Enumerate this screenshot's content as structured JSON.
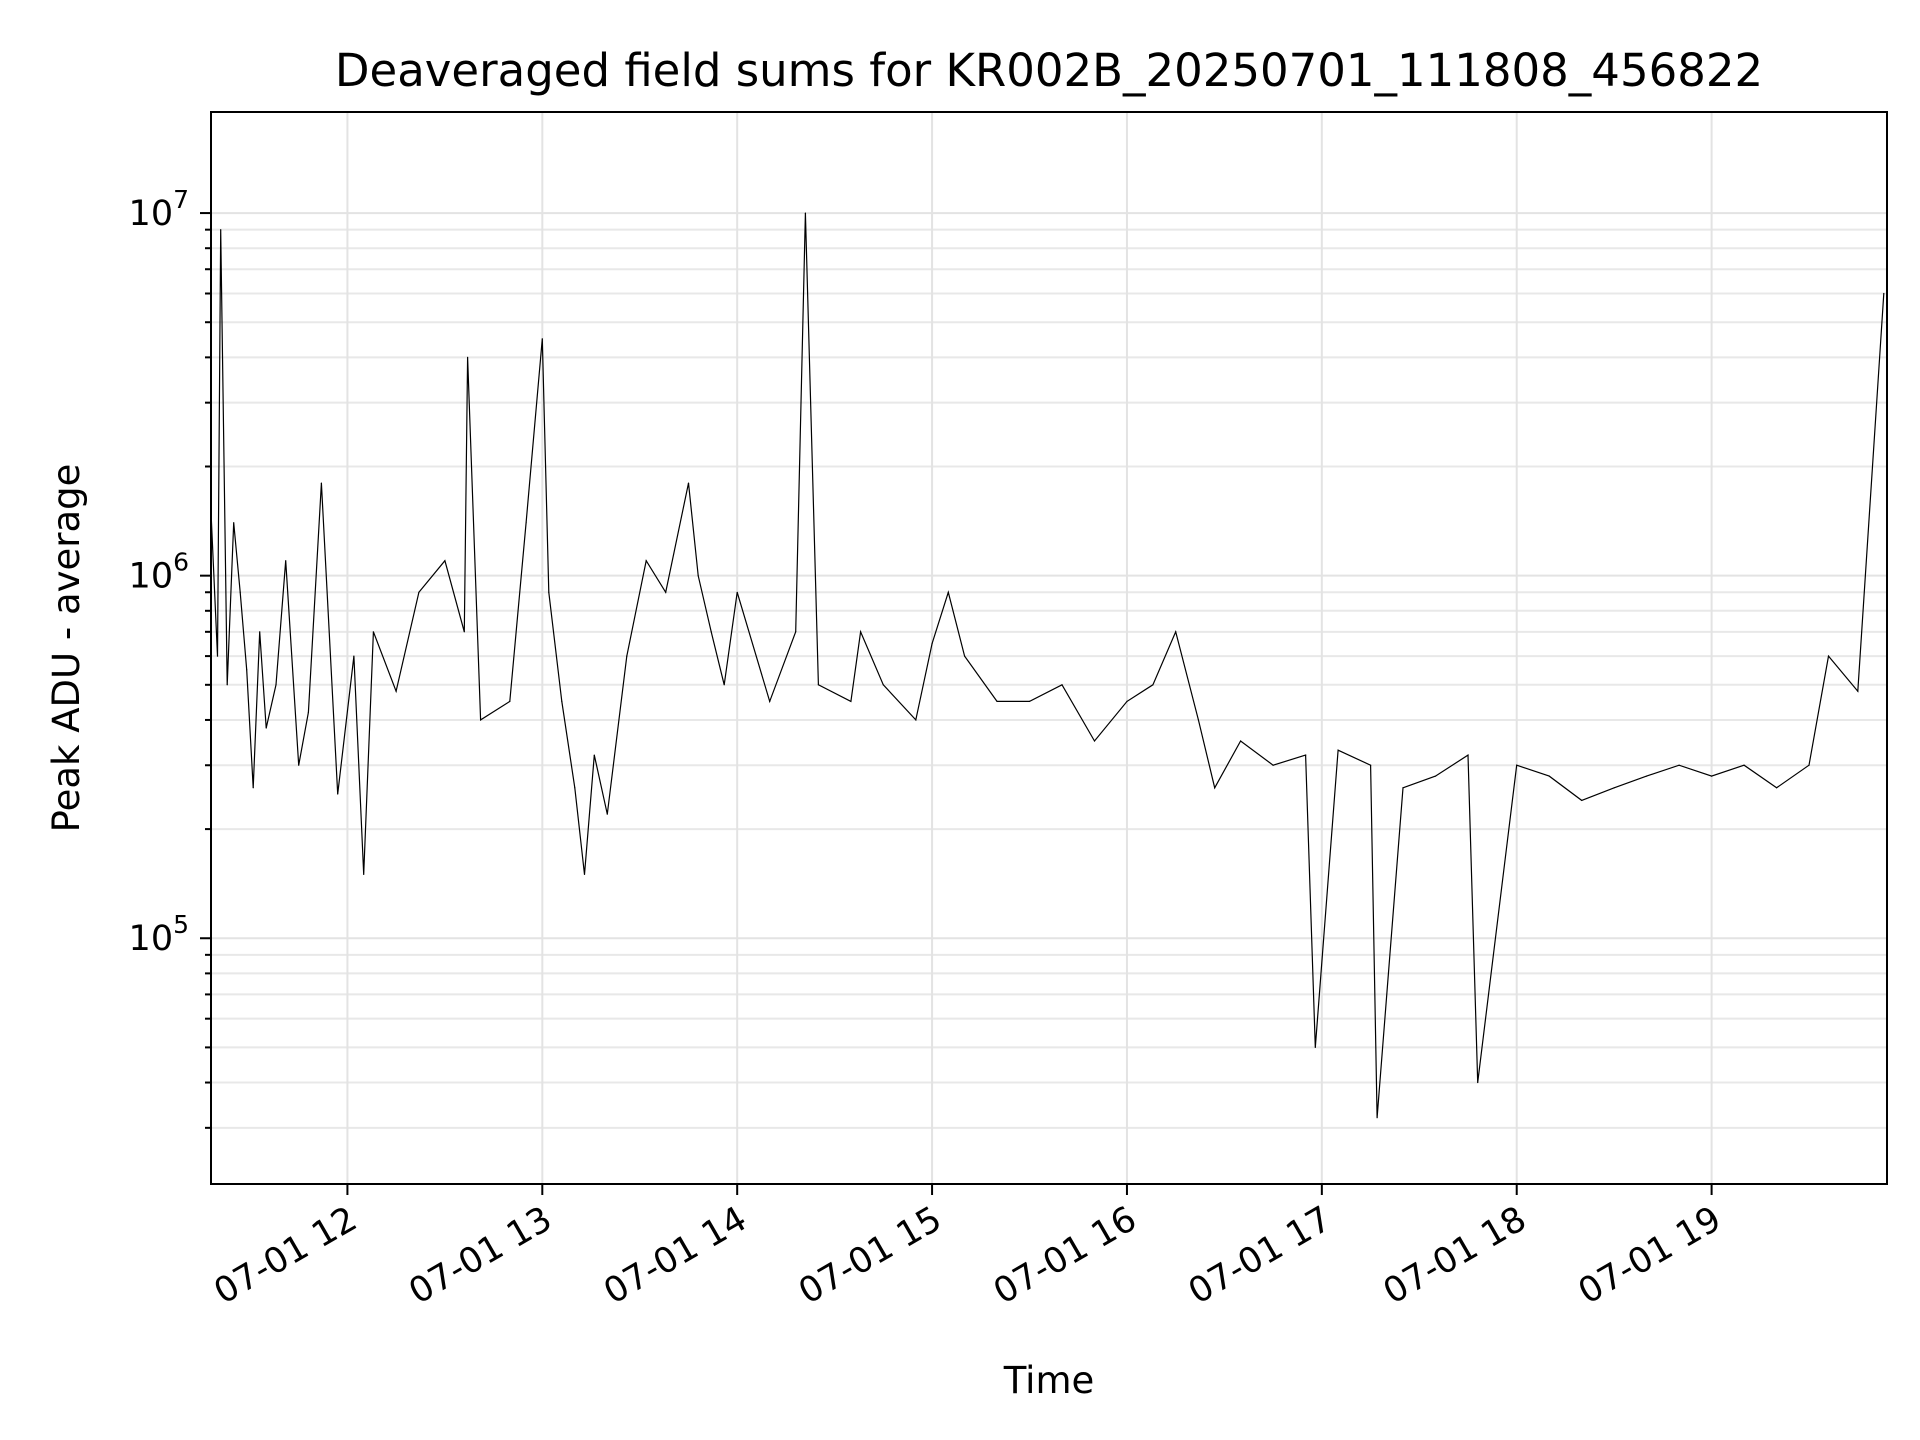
{
  "chart_data": {
    "type": "line",
    "title": "Deaveraged field sums for KR002B_20250701_111808_456822",
    "xlabel": "Time",
    "ylabel": "Peak ADU - average",
    "yscale": "log",
    "xlim": [
      "2025-07-01 11:18",
      "2025-07-01 19:54"
    ],
    "ylim": [
      21000,
      19000000
    ],
    "grid": "on (major and minor)",
    "line_color": "#000000",
    "x_ticks": [
      {
        "value": "2025-07-01 12:00",
        "label": "07-01 12"
      },
      {
        "value": "2025-07-01 13:00",
        "label": "07-01 13"
      },
      {
        "value": "2025-07-01 14:00",
        "label": "07-01 14"
      },
      {
        "value": "2025-07-01 15:00",
        "label": "07-01 15"
      },
      {
        "value": "2025-07-01 16:00",
        "label": "07-01 16"
      },
      {
        "value": "2025-07-01 17:00",
        "label": "07-01 17"
      },
      {
        "value": "2025-07-01 18:00",
        "label": "07-01 18"
      },
      {
        "value": "2025-07-01 19:00",
        "label": "07-01 19"
      }
    ],
    "y_ticks": [
      {
        "value": 100000,
        "base": "10",
        "exp": "5"
      },
      {
        "value": 1000000,
        "base": "10",
        "exp": "6"
      },
      {
        "value": 10000000,
        "base": "10",
        "exp": "7"
      }
    ],
    "series": [
      {
        "x": [
          "2025-07-01 11:18",
          "2025-07-01 11:20",
          "2025-07-01 11:21",
          "2025-07-01 11:23",
          "2025-07-01 11:25",
          "2025-07-01 11:27",
          "2025-07-01 11:29",
          "2025-07-01 11:31",
          "2025-07-01 11:33",
          "2025-07-01 11:35",
          "2025-07-01 11:38",
          "2025-07-01 11:41",
          "2025-07-01 11:45",
          "2025-07-01 11:48",
          "2025-07-01 11:52",
          "2025-07-01 11:57",
          "2025-07-01 12:02",
          "2025-07-01 12:05",
          "2025-07-01 12:08",
          "2025-07-01 12:15",
          "2025-07-01 12:22",
          "2025-07-01 12:30",
          "2025-07-01 12:36",
          "2025-07-01 12:37",
          "2025-07-01 12:41",
          "2025-07-01 12:50",
          "2025-07-01 12:55",
          "2025-07-01 13:00",
          "2025-07-01 13:02",
          "2025-07-01 13:06",
          "2025-07-01 13:10",
          "2025-07-01 13:13",
          "2025-07-01 13:16",
          "2025-07-01 13:20",
          "2025-07-01 13:26",
          "2025-07-01 13:32",
          "2025-07-01 13:38",
          "2025-07-01 13:45",
          "2025-07-01 13:48",
          "2025-07-01 13:52",
          "2025-07-01 13:56",
          "2025-07-01 14:00",
          "2025-07-01 14:10",
          "2025-07-01 14:18",
          "2025-07-01 14:21",
          "2025-07-01 14:25",
          "2025-07-01 14:35",
          "2025-07-01 14:38",
          "2025-07-01 14:45",
          "2025-07-01 14:55",
          "2025-07-01 15:00",
          "2025-07-01 15:05",
          "2025-07-01 15:10",
          "2025-07-01 15:20",
          "2025-07-01 15:30",
          "2025-07-01 15:40",
          "2025-07-01 15:50",
          "2025-07-01 16:00",
          "2025-07-01 16:08",
          "2025-07-01 16:15",
          "2025-07-01 16:22",
          "2025-07-01 16:27",
          "2025-07-01 16:35",
          "2025-07-01 16:45",
          "2025-07-01 16:55",
          "2025-07-01 16:58",
          "2025-07-01 17:05",
          "2025-07-01 17:15",
          "2025-07-01 17:17",
          "2025-07-01 17:25",
          "2025-07-01 17:35",
          "2025-07-01 17:45",
          "2025-07-01 17:48",
          "2025-07-01 18:00",
          "2025-07-01 18:10",
          "2025-07-01 18:20",
          "2025-07-01 18:30",
          "2025-07-01 18:40",
          "2025-07-01 18:50",
          "2025-07-01 19:00",
          "2025-07-01 19:10",
          "2025-07-01 19:20",
          "2025-07-01 19:30",
          "2025-07-01 19:36",
          "2025-07-01 19:45",
          "2025-07-01 19:53"
        ],
        "values": [
          1500000,
          600000,
          9000000,
          500000,
          1400000,
          900000,
          550000,
          260000,
          700000,
          380000,
          500000,
          1100000,
          300000,
          420000,
          1800000,
          250000,
          600000,
          150000,
          700000,
          480000,
          900000,
          1100000,
          700000,
          4000000,
          400000,
          450000,
          1400000,
          4500000,
          900000,
          450000,
          260000,
          150000,
          320000,
          220000,
          600000,
          1100000,
          900000,
          1800000,
          1000000,
          700000,
          500000,
          900000,
          450000,
          700000,
          10000000,
          500000,
          450000,
          700000,
          500000,
          400000,
          650000,
          900000,
          600000,
          450000,
          450000,
          500000,
          350000,
          450000,
          500000,
          700000,
          400000,
          260000,
          350000,
          300000,
          320000,
          50000,
          330000,
          300000,
          32000,
          260000,
          280000,
          320000,
          40000,
          300000,
          280000,
          240000,
          260000,
          280000,
          300000,
          280000,
          300000,
          260000,
          300000,
          600000,
          480000,
          6000000
        ]
      }
    ]
  }
}
